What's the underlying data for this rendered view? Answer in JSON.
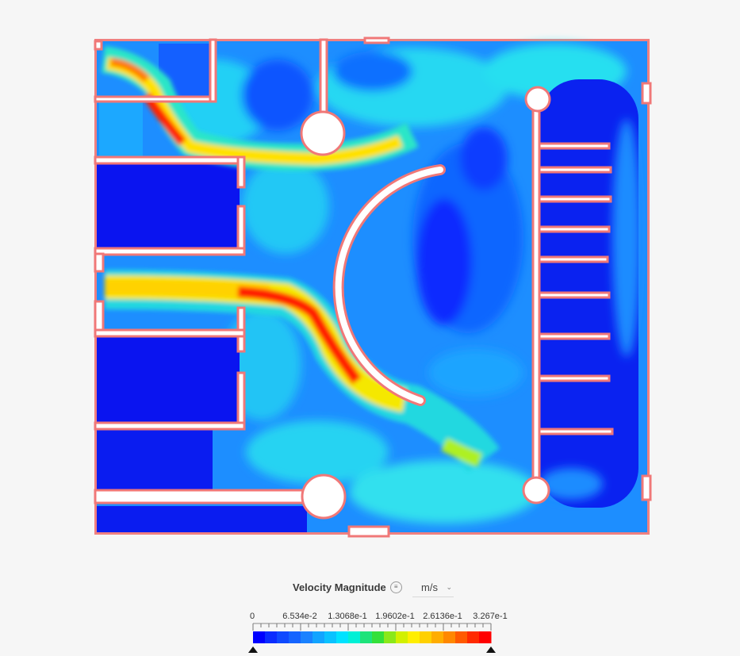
{
  "legend": {
    "title": "Velocity Magnitude",
    "menu_icon": "menu-icon",
    "unit": "m/s",
    "min": 0,
    "max": 0.3267,
    "tick_labels": [
      "0",
      "6.534e-2",
      "1.3068e-1",
      "1.9602e-1",
      "2.6136e-1",
      "3.267e-1"
    ],
    "colors": [
      "#0000ff",
      "#0a2cff",
      "#0f4aff",
      "#1564ff",
      "#1a82ff",
      "#12a4ff",
      "#0ac2ff",
      "#00e2ff",
      "#00f0d6",
      "#1ee37a",
      "#34e03a",
      "#8be81a",
      "#d2f000",
      "#ffee00",
      "#ffd000",
      "#ffad00",
      "#ff8800",
      "#ff5a00",
      "#ff2a00",
      "#ff0000"
    ]
  },
  "colors": {
    "low": "#0a1ef0",
    "mid": "#1e9bff",
    "cyan": "#17d6f0",
    "high": "#ff2200",
    "wall": "#f07878"
  }
}
